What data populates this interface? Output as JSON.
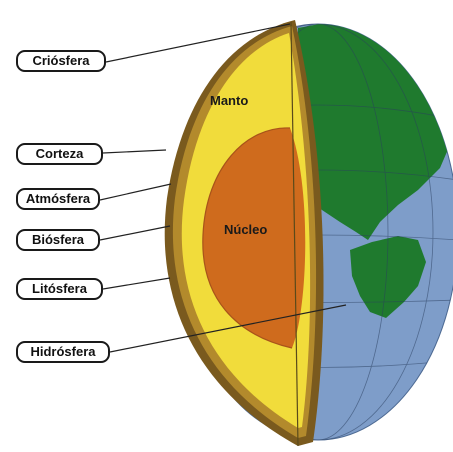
{
  "diagram": {
    "labels": {
      "criosfera": "Criósfera",
      "corteza": "Corteza",
      "atmosfera": "Atmósfera",
      "biosfera": "Biósfera",
      "litosfera": "Litósfera",
      "hidrosfera": "Hidrósfera"
    },
    "regions": {
      "manto": "Manto",
      "nucleo": "Núcleo"
    },
    "colors": {
      "ocean": "#7e9dc9",
      "land": "#1f7a2e",
      "mantle": "#f1dc3b",
      "core": "#cf6b1d",
      "crust": "#7a5a1e"
    }
  }
}
